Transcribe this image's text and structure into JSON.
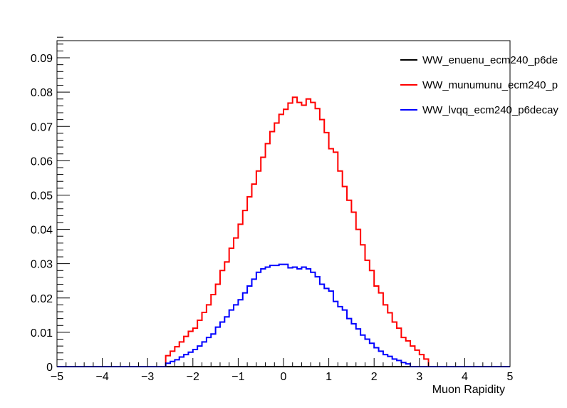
{
  "chart_data": {
    "type": "line",
    "drawstyle": "step",
    "title": "",
    "xlabel": "Muon Rapidity",
    "ylabel": "",
    "xlim": [
      -5,
      5
    ],
    "ylim": [
      0,
      0.095
    ],
    "xticks": [
      -5,
      -4,
      -3,
      -2,
      -1,
      0,
      1,
      2,
      3,
      4,
      5
    ],
    "xtick_labels": [
      "−5",
      "−4",
      "−3",
      "−2",
      "−1",
      "0",
      "1",
      "2",
      "3",
      "4",
      "5"
    ],
    "yticks": [
      0,
      0.01,
      0.02,
      0.03,
      0.04,
      0.05,
      0.06,
      0.07,
      0.08,
      0.09
    ],
    "ytick_labels": [
      "0",
      "0.01",
      "0.02",
      "0.03",
      "0.04",
      "0.05",
      "0.06",
      "0.07",
      "0.08",
      "0.09"
    ],
    "grid": false,
    "legend_position": "top-right",
    "bins": {
      "start": -5,
      "width": 0.1,
      "count": 100
    },
    "series": [
      {
        "name": "WW_enuenu_ecm240_p6de",
        "color": "#000000",
        "values": [
          0,
          0,
          0,
          0,
          0,
          0,
          0,
          0,
          0,
          0,
          0,
          0,
          0,
          0,
          0,
          0,
          0,
          0,
          0,
          0,
          0,
          0,
          0,
          0,
          0,
          0,
          0,
          0,
          0,
          0,
          0,
          0,
          0,
          0,
          0,
          0,
          0,
          0,
          0,
          0,
          0,
          0,
          0,
          0,
          0,
          0,
          0,
          0,
          0,
          0,
          0,
          0,
          0,
          0,
          0,
          0,
          0,
          0,
          0,
          0,
          0,
          0,
          0,
          0,
          0,
          0,
          0,
          0,
          0,
          0,
          0,
          0,
          0,
          0,
          0,
          0,
          0,
          0,
          0,
          0,
          0,
          0,
          0,
          0,
          0,
          0,
          0,
          0,
          0,
          0,
          0,
          0,
          0,
          0,
          0,
          0,
          0,
          0,
          0,
          0
        ]
      },
      {
        "name": "WW_munumunu_ecm240_p",
        "color": "#ff0000",
        "values": [
          0,
          0,
          0,
          0,
          0,
          0,
          0,
          0,
          0,
          0,
          0,
          0,
          0,
          0,
          0,
          0,
          0,
          0,
          0,
          0,
          0,
          0,
          0,
          0,
          0.0032,
          0.0045,
          0.0058,
          0.0072,
          0.0088,
          0.0103,
          0.0112,
          0.0135,
          0.0158,
          0.018,
          0.021,
          0.024,
          0.028,
          0.0305,
          0.0345,
          0.0375,
          0.0415,
          0.0455,
          0.0495,
          0.0532,
          0.057,
          0.061,
          0.065,
          0.0685,
          0.071,
          0.0735,
          0.075,
          0.0768,
          0.0785,
          0.077,
          0.0762,
          0.078,
          0.077,
          0.0752,
          0.072,
          0.0682,
          0.0635,
          0.0625,
          0.057,
          0.0525,
          0.0485,
          0.045,
          0.04,
          0.0355,
          0.031,
          0.028,
          0.0235,
          0.0215,
          0.018,
          0.0157,
          0.013,
          0.0112,
          0.0085,
          0.0075,
          0.006,
          0.0048,
          0.0035,
          0.0022,
          0,
          0,
          0,
          0,
          0,
          0,
          0,
          0,
          0,
          0,
          0,
          0,
          0,
          0,
          0,
          0,
          0,
          0
        ]
      },
      {
        "name": "WW_lvqq_ecm240_p6decay",
        "color": "#0000ff",
        "values": [
          0,
          0,
          0,
          0,
          0,
          0,
          0,
          0,
          0,
          0,
          0,
          0,
          0,
          0,
          0,
          0,
          0,
          0,
          0,
          0,
          0,
          0,
          0,
          0,
          0.001,
          0.0015,
          0.002,
          0.0028,
          0.0035,
          0.0042,
          0.005,
          0.006,
          0.0072,
          0.0085,
          0.0095,
          0.0115,
          0.013,
          0.0145,
          0.0165,
          0.018,
          0.0195,
          0.0215,
          0.0235,
          0.0255,
          0.0275,
          0.0285,
          0.029,
          0.0295,
          0.0295,
          0.0298,
          0.0298,
          0.0288,
          0.029,
          0.0285,
          0.029,
          0.0285,
          0.0275,
          0.0262,
          0.024,
          0.0228,
          0.022,
          0.019,
          0.0175,
          0.0165,
          0.014,
          0.0125,
          0.011,
          0.0092,
          0.008,
          0.0068,
          0.0055,
          0.0045,
          0.0035,
          0.003,
          0.0022,
          0.0018,
          0.0012,
          0.0008,
          0,
          0,
          0,
          0,
          0,
          0,
          0,
          0,
          0,
          0,
          0,
          0,
          0,
          0,
          0,
          0,
          0,
          0,
          0,
          0,
          0,
          0
        ]
      }
    ]
  }
}
